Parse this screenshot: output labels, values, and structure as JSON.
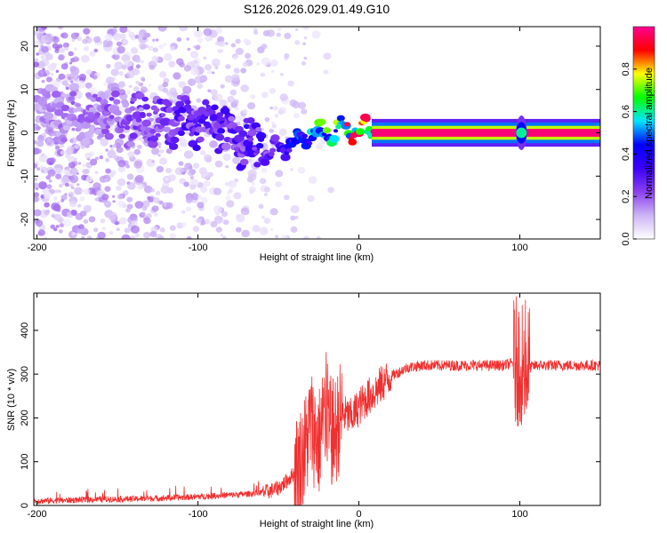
{
  "chart_data": [
    {
      "type": "heatmap",
      "title": "S126.2026.029.01.49.G10",
      "xlabel": "Height of straight line (km)",
      "ylabel": "Frequency (Hz)",
      "xlim": [
        -202,
        150
      ],
      "ylim": [
        -24.5,
        24.5
      ],
      "xticks": [
        -200,
        -100,
        0,
        100
      ],
      "yticks": [
        -20,
        -10,
        0,
        10,
        20
      ],
      "colorbar": {
        "label": "Normalized spectral amplitude",
        "range": [
          0,
          1
        ],
        "ticks": [
          "0.0",
          "0.2",
          "0.4",
          "0.6",
          "0.8"
        ],
        "tick_values": [
          0.0,
          0.2,
          0.4,
          0.6,
          0.8
        ],
        "colors": [
          "#ffffff",
          "#cdb4f5",
          "#8a3ff0",
          "#3b00ff",
          "#0000ff",
          "#00e6ff",
          "#00ff00",
          "#ffff00",
          "#ff0000",
          "#ff0090"
        ]
      },
      "ridge": {
        "x": [
          -200,
          -160,
          -130,
          -110,
          -95,
          -80,
          -65,
          -55,
          -45,
          -38,
          -30,
          -20,
          -10,
          0,
          10,
          50,
          100,
          150
        ],
        "y": [
          5,
          4,
          3,
          3,
          3,
          0,
          -3,
          -5,
          -3,
          -2,
          0,
          0,
          1,
          1,
          0,
          0,
          0,
          0
        ],
        "amplitude": [
          0.15,
          0.2,
          0.25,
          0.3,
          0.3,
          0.3,
          0.32,
          0.32,
          0.35,
          0.45,
          0.55,
          0.7,
          0.8,
          0.95,
          1.0,
          1.0,
          1.0,
          1.0
        ]
      }
    },
    {
      "type": "line",
      "title": "",
      "xlabel": "Height of straight line (km)",
      "ylabel": "SNR (10 * v/v)",
      "xlim": [
        -202,
        150
      ],
      "ylim": [
        0,
        485
      ],
      "xticks": [
        -200,
        -100,
        0,
        100
      ],
      "yticks": [
        0,
        100,
        200,
        300,
        400
      ],
      "color": "#f03030",
      "x": [
        -202,
        -180,
        -160,
        -140,
        -120,
        -100,
        -90,
        -80,
        -70,
        -60,
        -55,
        -50,
        -45,
        -40,
        -35,
        -32,
        -30,
        -28,
        -25,
        -22,
        -20,
        -18,
        -15,
        -12,
        -10,
        -5,
        0,
        5,
        10,
        15,
        20,
        25,
        30,
        40,
        50,
        60,
        70,
        80,
        90,
        95,
        98,
        100,
        102,
        104,
        106,
        110,
        120,
        130,
        140,
        150
      ],
      "y": [
        10,
        12,
        14,
        15,
        17,
        20,
        22,
        24,
        26,
        30,
        33,
        40,
        55,
        75,
        110,
        150,
        190,
        170,
        140,
        200,
        220,
        170,
        160,
        200,
        210,
        200,
        225,
        245,
        260,
        280,
        295,
        305,
        315,
        320,
        320,
        320,
        320,
        320,
        320,
        325,
        330,
        330,
        325,
        320,
        315,
        320,
        320,
        320,
        320,
        320
      ]
    }
  ]
}
